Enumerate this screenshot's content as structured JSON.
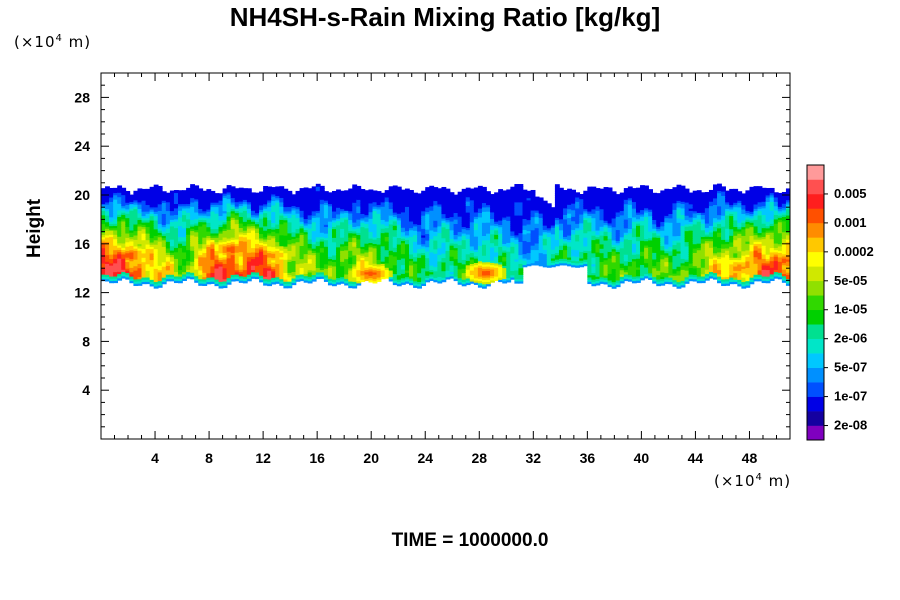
{
  "chart_data": {
    "type": "heatmap",
    "title": "NH4SH-s-Rain Mixing Ratio [kg/kg]",
    "ylabel": "Height",
    "xlabel": "",
    "x_unit": "(×10⁴ m)",
    "y_unit": "(×10⁴ m)",
    "x_unit_prefix": "(×10",
    "x_unit_exp": "4",
    "x_unit_suffix": " m)",
    "y_unit_prefix": "(×10",
    "y_unit_exp": "4",
    "y_unit_suffix": " m)",
    "xlim": [
      0,
      51
    ],
    "ylim": [
      0,
      30
    ],
    "x_ticks": [
      4,
      8,
      12,
      16,
      20,
      24,
      28,
      32,
      36,
      40,
      44,
      48
    ],
    "y_ticks": [
      4,
      8,
      12,
      16,
      20,
      24,
      28
    ],
    "colorbar": {
      "labels": [
        "0.005",
        "0.001",
        "0.0002",
        "5e-05",
        "1e-05",
        "2e-06",
        "5e-07",
        "1e-07",
        "2e-08"
      ],
      "colors": [
        "#7f00bf",
        "#1400a0",
        "#0000e6",
        "#0050ff",
        "#0090ff",
        "#00c8ff",
        "#00e6c8",
        "#00e090",
        "#00d000",
        "#30d800",
        "#90e000",
        "#d0e800",
        "#ffff00",
        "#ffc800",
        "#ff8c00",
        "#ff5000",
        "#ff1e1e",
        "#ff5050",
        "#ff9a9a"
      ]
    },
    "cloud_layer": {
      "base": 12.8,
      "top": 20.4
    },
    "intensity_profile": [
      {
        "x": 0,
        "v": 0.95
      },
      {
        "x": 2,
        "v": 0.92
      },
      {
        "x": 4,
        "v": 0.75
      },
      {
        "x": 6,
        "v": 0.6
      },
      {
        "x": 8,
        "v": 0.9
      },
      {
        "x": 10,
        "v": 0.93
      },
      {
        "x": 12,
        "v": 0.9
      },
      {
        "x": 14,
        "v": 0.7
      },
      {
        "x": 16,
        "v": 0.55
      },
      {
        "x": 18,
        "v": 0.62
      },
      {
        "x": 20,
        "v": 0.68
      },
      {
        "x": 22,
        "v": 0.5
      },
      {
        "x": 24,
        "v": 0.45
      },
      {
        "x": 26,
        "v": 0.45
      },
      {
        "x": 28,
        "v": 0.5
      },
      {
        "x": 30,
        "v": 0.4
      },
      {
        "x": 32,
        "v": 0.3
      },
      {
        "x": 34,
        "v": 0.42
      },
      {
        "x": 36,
        "v": 0.5
      },
      {
        "x": 38,
        "v": 0.52
      },
      {
        "x": 40,
        "v": 0.55
      },
      {
        "x": 42,
        "v": 0.52
      },
      {
        "x": 44,
        "v": 0.6
      },
      {
        "x": 46,
        "v": 0.75
      },
      {
        "x": 48,
        "v": 0.82
      },
      {
        "x": 50,
        "v": 0.9
      },
      {
        "x": 51,
        "v": 0.9
      }
    ],
    "hotspots": [
      {
        "x": 2.0,
        "y": 15.0,
        "level": 17
      },
      {
        "x": 9.5,
        "y": 15.5,
        "level": 17
      },
      {
        "x": 12.5,
        "y": 15.0,
        "level": 16
      },
      {
        "x": 19.8,
        "y": 13.5,
        "level": 17
      },
      {
        "x": 28.3,
        "y": 13.6,
        "level": 17
      },
      {
        "x": 47.0,
        "y": 14.0,
        "level": 16
      },
      {
        "x": 50.5,
        "y": 14.6,
        "level": 17
      }
    ]
  },
  "footer": {
    "time_text": "TIME = 1000000.0"
  }
}
